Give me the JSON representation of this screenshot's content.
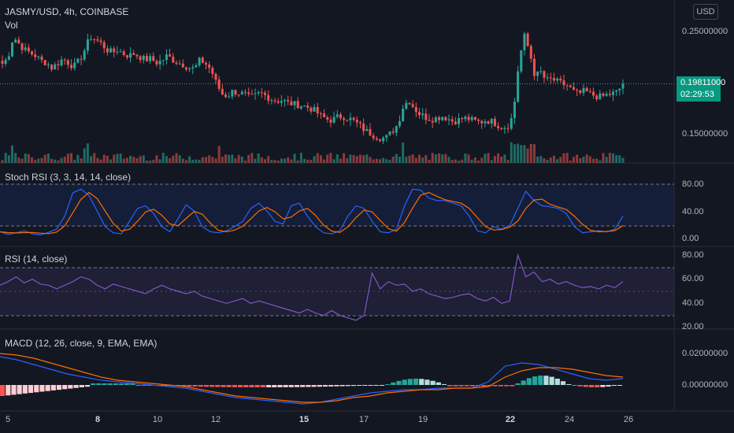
{
  "header": {
    "symbol_title": "JASMY/USD, 4h, COINBASE",
    "vol_label": "Vol",
    "currency_button": "USD"
  },
  "price_axis": {
    "labels": [
      "0.25000000",
      "0.15000000"
    ],
    "last_price": "0.19811000",
    "countdown": "02:29:53"
  },
  "stoch_rsi": {
    "title": "Stoch RSI (3, 3, 14, 14, close)",
    "axis_labels": [
      "80.00",
      "40.00",
      "0.00"
    ]
  },
  "rsi": {
    "title": "RSI (14, close)",
    "axis_labels": [
      "80.00",
      "60.00",
      "40.00",
      "20.00"
    ]
  },
  "macd": {
    "title": "MACD (12, 26, close, 9, EMA, EMA)",
    "axis_labels": [
      "0.02000000",
      "0.00000000"
    ]
  },
  "time_axis": {
    "labels": [
      {
        "text": "5",
        "bold": false
      },
      {
        "text": "8",
        "bold": true
      },
      {
        "text": "10",
        "bold": false
      },
      {
        "text": "12",
        "bold": false
      },
      {
        "text": "15",
        "bold": true
      },
      {
        "text": "17",
        "bold": false
      },
      {
        "text": "19",
        "bold": false
      },
      {
        "text": "22",
        "bold": true
      },
      {
        "text": "24",
        "bold": false
      },
      {
        "text": "26",
        "bold": false
      }
    ]
  },
  "colors": {
    "background": "#131722",
    "up": "#26a69a",
    "down": "#ef5350",
    "stoch_k": "#2962ff",
    "stoch_d": "#ff6d00",
    "rsi_line": "#7e57c2",
    "macd_line": "#2962ff",
    "signal_line": "#ff6d00"
  },
  "chart_data": {
    "type": "candlestick",
    "symbol": "JASMY/USD",
    "interval": "4h",
    "exchange": "COINBASE",
    "close_path": [
      0.218,
      0.224,
      0.245,
      0.238,
      0.232,
      0.229,
      0.226,
      0.221,
      0.219,
      0.214,
      0.218,
      0.223,
      0.219,
      0.215,
      0.221,
      0.232,
      0.245,
      0.242,
      0.238,
      0.232,
      0.229,
      0.232,
      0.228,
      0.226,
      0.228,
      0.225,
      0.222,
      0.223,
      0.219,
      0.221,
      0.226,
      0.222,
      0.219,
      0.217,
      0.214,
      0.213,
      0.222,
      0.218,
      0.212,
      0.198,
      0.188,
      0.186,
      0.191,
      0.189,
      0.188,
      0.184,
      0.186,
      0.189,
      0.186,
      0.183,
      0.181,
      0.182,
      0.179,
      0.178,
      0.177,
      0.176,
      0.174,
      0.171,
      0.166,
      0.163,
      0.162,
      0.165,
      0.166,
      0.164,
      0.161,
      0.157,
      0.152,
      0.149,
      0.146,
      0.144,
      0.145,
      0.151,
      0.158,
      0.176,
      0.182,
      0.174,
      0.168,
      0.165,
      0.163,
      0.164,
      0.166,
      0.164,
      0.161,
      0.162,
      0.164,
      0.163,
      0.161,
      0.16,
      0.162,
      0.161,
      0.158,
      0.155,
      0.156,
      0.167,
      0.218,
      0.246,
      0.23,
      0.205,
      0.21,
      0.201,
      0.203,
      0.2,
      0.198,
      0.196,
      0.19,
      0.188,
      0.191,
      0.188,
      0.186,
      0.185,
      0.187,
      0.188,
      0.19,
      0.198
    ],
    "volume_note": "volume bars under price",
    "indicators": {
      "stoch_rsi": {
        "k_period": 3,
        "d_period": 3,
        "rsi_length": 14,
        "stoch_length": 14,
        "source": "close",
        "bands": [
          20,
          80
        ]
      },
      "rsi": {
        "length": 14,
        "source": "close",
        "bands": [
          30,
          70
        ],
        "midline": 50
      },
      "macd": {
        "fast": 12,
        "slow": 26,
        "source": "close",
        "signal": 9
      }
    }
  }
}
